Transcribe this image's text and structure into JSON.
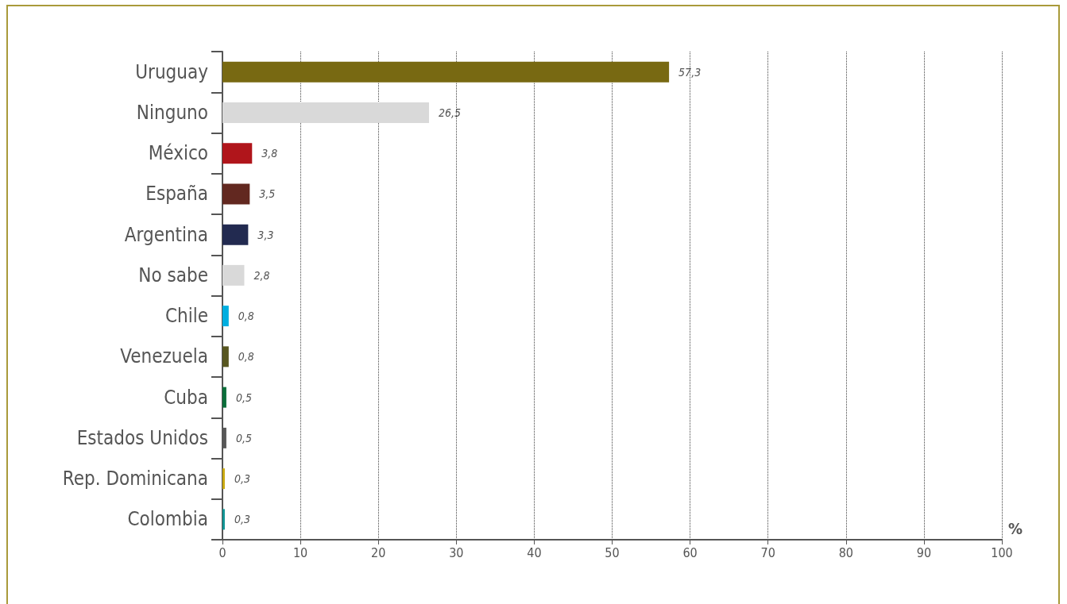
{
  "chart_data": {
    "type": "bar",
    "orientation": "horizontal",
    "xlabel": "%",
    "categories": [
      "Uruguay",
      "Ninguno",
      "México",
      "España",
      "Argentina",
      "No sabe",
      "Chile",
      "Venezuela",
      "Cuba",
      "Estados Unidos",
      "Rep. Dominicana",
      "Colombia"
    ],
    "values": [
      57.3,
      26.5,
      3.8,
      3.5,
      3.3,
      2.8,
      0.8,
      0.8,
      0.5,
      0.5,
      0.3,
      0.3
    ],
    "colors": [
      "#786912",
      "#d9d9d9",
      "#b0151b",
      "#622820",
      "#222a50",
      "#d9d9d9",
      "#00aee0",
      "#575620",
      "#0b6e3a",
      "#575757",
      "#c9a80f",
      "#0f9494"
    ],
    "value_labels": [
      "57,3",
      "26,5",
      "3,8",
      "3,5",
      "3,3",
      "2,8",
      "0,8",
      "0,8",
      "0,5",
      "0,5",
      "0,3",
      "0,3"
    ],
    "xlim": [
      0,
      100
    ],
    "xticks": [
      0,
      10,
      20,
      30,
      40,
      50,
      60,
      70,
      80,
      90,
      100
    ],
    "grid": "x"
  }
}
